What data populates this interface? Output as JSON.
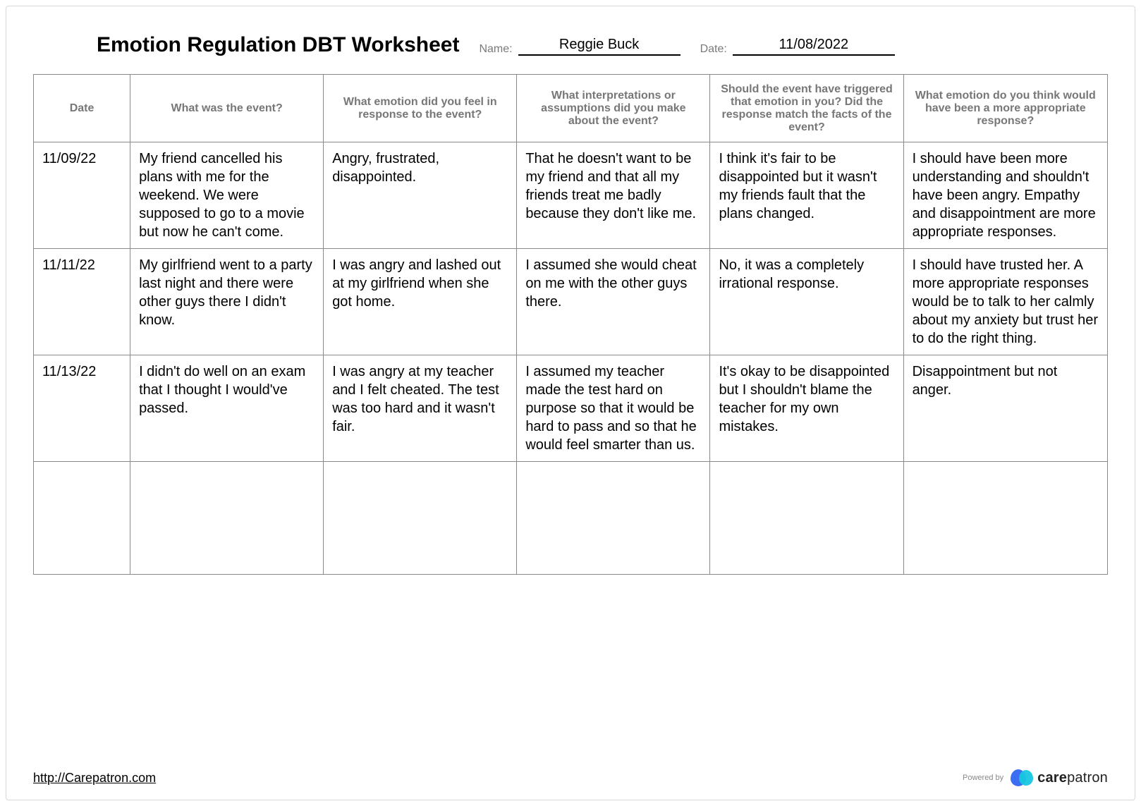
{
  "title": "Emotion Regulation DBT Worksheet",
  "name_label": "Name:",
  "date_label": "Date:",
  "name_value": "Reggie Buck",
  "date_value": "11/08/2022",
  "columns": [
    "Date",
    "What was the event?",
    "What emotion did you feel in response to the event?",
    "What interpretations or assumptions did you make about the event?",
    "Should the event have triggered that emotion in you? Did the response match the facts of the event?",
    "What emotion do you think would have been a more appropriate response?"
  ],
  "rows": [
    {
      "date": "11/09/22",
      "event": "My friend cancelled his plans with me for the weekend. We were supposed to go to a movie but now he can't come.",
      "emotion": "Angry, frustrated, disappointed.",
      "interpretation": "That he doesn't want to be my friend and that all my friends treat me badly because they don't like me.",
      "should": "I think it's fair to be disappointed but it wasn't my friends fault that the plans changed.",
      "better": "I should have been more understanding and shouldn't have been angry. Empathy and disappointment are more appropriate responses."
    },
    {
      "date": "11/11/22",
      "event": "My girlfriend went to a party last night and there were other guys there I didn't know.",
      "emotion": "I was angry and lashed out at my girlfriend when she got home.",
      "interpretation": "I assumed she would cheat on me with the other guys there.",
      "should": "No, it was a completely irrational response.",
      "better": "I should have trusted her. A more appropriate responses would be to talk to her calmly about my anxiety but trust her to do the right thing."
    },
    {
      "date": "11/13/22",
      "event": "I didn't do well on an exam that I thought I would've passed.",
      "emotion": "I was angry at my teacher and I felt cheated. The test was too hard and it wasn't fair.",
      "interpretation": "I assumed my teacher made the test hard on purpose so that it would be hard to pass and so that he would feel smarter than us.",
      "should": "It's okay to be disappointed but I shouldn't blame the teacher for my own mistakes.",
      "better": "Disappointment but not anger."
    },
    {
      "date": "",
      "event": "",
      "emotion": "",
      "interpretation": "",
      "should": "",
      "better": ""
    }
  ],
  "footer_link_text": "http://Carepatron.com",
  "footer_link_href": "http://Carepatron.com",
  "powered_by": "Powered by",
  "brand_bold": "care",
  "brand_light": "patron",
  "colors": {
    "border": "#8a8a8a",
    "header_text": "#777777",
    "meta_label": "#7a7a7a",
    "logo_blue": "#3b6ef0",
    "logo_cyan": "#18c6e0"
  }
}
